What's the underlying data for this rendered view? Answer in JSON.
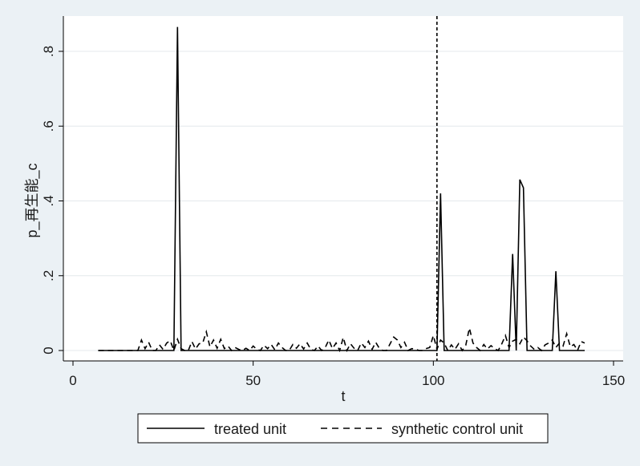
{
  "chart_data": {
    "type": "line",
    "xlabel": "t",
    "ylabel": "p_再生能_c",
    "xlim": [
      0,
      150
    ],
    "ylim": [
      0,
      0.9
    ],
    "x_ticks": [
      0,
      50,
      100,
      150
    ],
    "x_tick_labels": [
      "0",
      "50",
      "100",
      "150"
    ],
    "y_ticks": [
      0,
      0.2,
      0.4,
      0.6,
      0.8
    ],
    "y_tick_labels": [
      "0",
      ".2",
      ".4",
      ".6",
      ".8"
    ],
    "grid": true,
    "legend_position": "bottom",
    "treatment_line": 101,
    "series": [
      {
        "name": "treated unit",
        "style": "solid",
        "color": "#000000",
        "x": [
          7,
          28,
          29,
          30,
          101,
          102,
          103,
          121,
          122,
          123,
          124,
          125,
          126,
          133,
          134,
          135,
          142
        ],
        "y": [
          0,
          0,
          0.865,
          0,
          0,
          0.42,
          0,
          0,
          0.258,
          0,
          0.457,
          0.435,
          0,
          0,
          0.212,
          0,
          0
        ]
      },
      {
        "name": "synthetic control unit",
        "style": "dashed",
        "color": "#000000",
        "x": [
          7,
          8,
          9,
          10,
          11,
          12,
          13,
          14,
          15,
          16,
          17,
          18,
          19,
          20,
          21,
          22,
          23,
          24,
          25,
          26,
          27,
          28,
          29,
          30,
          31,
          32,
          33,
          34,
          35,
          36,
          37,
          38,
          39,
          40,
          41,
          42,
          43,
          44,
          45,
          46,
          47,
          48,
          49,
          50,
          51,
          52,
          53,
          54,
          55,
          56,
          57,
          58,
          59,
          60,
          61,
          62,
          63,
          64,
          65,
          66,
          67,
          68,
          69,
          70,
          71,
          72,
          73,
          74,
          75,
          76,
          77,
          78,
          79,
          80,
          81,
          82,
          83,
          84,
          85,
          86,
          87,
          88,
          89,
          90,
          91,
          92,
          93,
          94,
          95,
          96,
          97,
          98,
          99,
          100,
          101,
          102,
          103,
          104,
          105,
          106,
          107,
          108,
          109,
          110,
          111,
          112,
          113,
          114,
          115,
          116,
          117,
          118,
          119,
          120,
          121,
          122,
          123,
          124,
          125,
          126,
          127,
          128,
          129,
          130,
          131,
          132,
          133,
          134,
          135,
          136,
          137,
          138,
          139,
          140,
          141,
          142
        ],
        "y": [
          0,
          0,
          0,
          0,
          0,
          0,
          0,
          0,
          0,
          0,
          0,
          0,
          0.028,
          0.005,
          0.022,
          0,
          0,
          0.015,
          0.003,
          0.02,
          0.026,
          0,
          0.03,
          0.005,
          0,
          0,
          0.024,
          0.004,
          0.018,
          0.02,
          0.05,
          0.01,
          0.028,
          0.006,
          0.03,
          0.005,
          0.012,
          0,
          0.008,
          0.003,
          0,
          0.006,
          0,
          0.012,
          0.003,
          0,
          0.014,
          0.005,
          0.016,
          0.002,
          0.02,
          0.008,
          0,
          0,
          0.016,
          0.006,
          0.018,
          0.004,
          0.02,
          0.003,
          0,
          0.012,
          0,
          0.008,
          0.028,
          0.005,
          0.02,
          0,
          0.035,
          0,
          0.018,
          0.006,
          0,
          0.02,
          0.008,
          0.025,
          0.003,
          0.022,
          0.006,
          0,
          0,
          0.018,
          0.036,
          0.028,
          0.008,
          0.022,
          0,
          0.005,
          0.004,
          0,
          0,
          0.005,
          0.008,
          0.04,
          0.003,
          0.028,
          0.02,
          0,
          0.015,
          0.003,
          0.018,
          0,
          0.014,
          0.06,
          0.02,
          0.008,
          0,
          0.016,
          0.004,
          0.013,
          0.005,
          0,
          0.018,
          0.04,
          0.008,
          0.025,
          0.03,
          0.018,
          0.036,
          0.026,
          0.012,
          0.003,
          0.008,
          0,
          0.015,
          0.02,
          0.028,
          0.008,
          0.02,
          0.012,
          0.045,
          0.01,
          0.016,
          0,
          0.024,
          0.02
        ]
      }
    ]
  }
}
